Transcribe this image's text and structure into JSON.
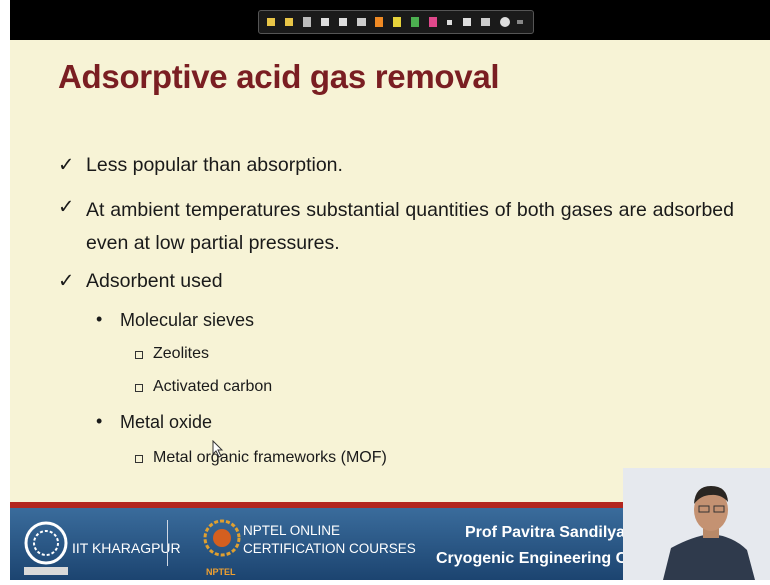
{
  "slide": {
    "title": "Adsorptive acid gas removal",
    "bullets": [
      {
        "text": "Less popular than absorption."
      },
      {
        "text": "At ambient temperatures substantial quantities of both gases are adsorbed even at low partial pressures."
      },
      {
        "text": "Adsorbent used",
        "items": [
          {
            "text": "Molecular sieves",
            "items": [
              "Zeolites",
              "Activated carbon"
            ]
          },
          {
            "text": "Metal oxide",
            "items": [
              "Metal organic frameworks (MOF)"
            ]
          }
        ]
      }
    ]
  },
  "footer": {
    "institute": "IIT KHARAGPUR",
    "nptel_line1": "NPTEL ONLINE",
    "nptel_line2": "CERTIFICATION COURSES",
    "nptel_logo": "NPTEL",
    "presenter": "Prof Pavitra Sandilya",
    "department": "Cryogenic Engineering Cen"
  }
}
